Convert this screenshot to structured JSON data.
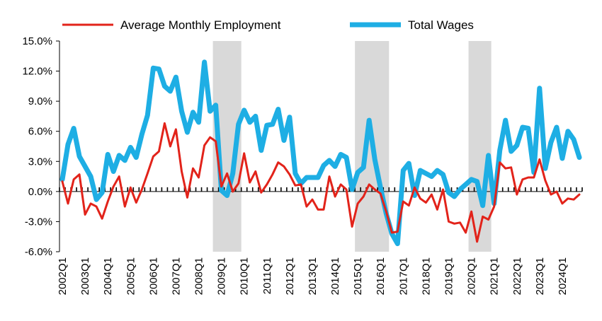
{
  "chart_data": {
    "type": "line",
    "title": "",
    "xlabel": "",
    "ylabel": "",
    "ylim": [
      -6.0,
      15.0
    ],
    "y_ticks": [
      "15.0%",
      "12.0%",
      "9.0%",
      "6.0%",
      "3.0%",
      "0.0%",
      "-3.0%",
      "-6.0%"
    ],
    "y_tick_values": [
      15,
      12,
      9,
      6,
      3,
      0,
      -3,
      -6
    ],
    "x_tick_labels": [
      "2002Q1",
      "2003Q1",
      "2004Q1",
      "2005Q1",
      "2006Q1",
      "2007Q1",
      "2008Q1",
      "2009Q1",
      "2010Q1",
      "2011Q1",
      "2012Q1",
      "2013Q1",
      "2014Q1",
      "2015Q1",
      "2016Q1",
      "2017Q1",
      "2018Q1",
      "2019Q1",
      "2020Q1",
      "2021Q1",
      "2022Q1",
      "2023Q1",
      "2024Q1"
    ],
    "x_start": "2002Q1",
    "x_end": "2024Q4",
    "legend_position": "top",
    "grid": false,
    "recession_shading": [
      {
        "start": "2008Q4",
        "end": "2009Q4"
      },
      {
        "start": "2015Q1",
        "end": "2016Q2"
      },
      {
        "start": "2020Q1",
        "end": "2020Q4"
      }
    ],
    "shading_color": "#d9d9d9",
    "series": [
      {
        "name": "Average Monthly Employment",
        "color": "#e2231a",
        "values": [
          1.0,
          -1.2,
          1.2,
          1.7,
          -2.3,
          -1.2,
          -1.5,
          -2.7,
          -1.0,
          0.5,
          1.5,
          -1.5,
          0.4,
          -1.1,
          0.2,
          1.8,
          3.5,
          4.0,
          6.8,
          4.5,
          6.2,
          2.0,
          -0.6,
          2.3,
          1.4,
          4.6,
          5.4,
          5.0,
          0.5,
          1.8,
          0.0,
          0.8,
          3.8,
          0.9,
          2.0,
          -0.1,
          0.7,
          1.7,
          2.9,
          2.5,
          1.7,
          0.6,
          0.7,
          -1.5,
          -0.8,
          -1.8,
          -1.8,
          1.5,
          -0.5,
          0.7,
          0.2,
          -3.5,
          -1.2,
          -0.5,
          0.7,
          0.2,
          -0.2,
          -2.0,
          -4.1,
          -4.0,
          -1.0,
          -1.4,
          0.4,
          -0.7,
          -1.1,
          -0.3,
          -1.8,
          0.2,
          -3.0,
          -3.2,
          -3.1,
          -4.1,
          -2.0,
          -5.0,
          -2.5,
          -2.8,
          -1.5,
          2.9,
          2.3,
          2.4,
          -0.3,
          1.2,
          1.4,
          1.4,
          3.2,
          1.1,
          -0.3,
          0.0,
          -1.2,
          -0.7,
          -0.8,
          -0.3
        ]
      },
      {
        "name": "Total Wages",
        "color": "#1eaee4",
        "values": [
          1.2,
          4.7,
          6.3,
          3.5,
          2.5,
          1.5,
          -0.8,
          -0.1,
          3.7,
          2.0,
          3.6,
          3.1,
          4.4,
          3.4,
          5.7,
          7.6,
          12.3,
          12.2,
          10.5,
          10.0,
          11.4,
          8.0,
          5.9,
          7.9,
          6.9,
          12.9,
          8.0,
          8.6,
          0.1,
          -0.4,
          1.8,
          6.7,
          8.1,
          6.9,
          7.5,
          4.1,
          6.6,
          6.7,
          8.2,
          5.1,
          7.4,
          1.8,
          0.8,
          1.4,
          1.4,
          1.4,
          2.6,
          3.1,
          2.5,
          3.7,
          3.4,
          0.2,
          1.9,
          2.4,
          7.1,
          3.2,
          0.4,
          -2.2,
          -4.2,
          -5.2,
          2.1,
          2.8,
          -0.4,
          2.1,
          1.8,
          1.5,
          2.1,
          1.7,
          -0.1,
          -0.5,
          0.2,
          0.7,
          1.2,
          1.0,
          -1.4,
          3.6,
          -1.2,
          4.1,
          7.1,
          4.0,
          4.6,
          6.4,
          6.3,
          1.9,
          10.3,
          2.3,
          4.9,
          6.4,
          3.3,
          6.0,
          5.2,
          3.4
        ]
      }
    ]
  }
}
